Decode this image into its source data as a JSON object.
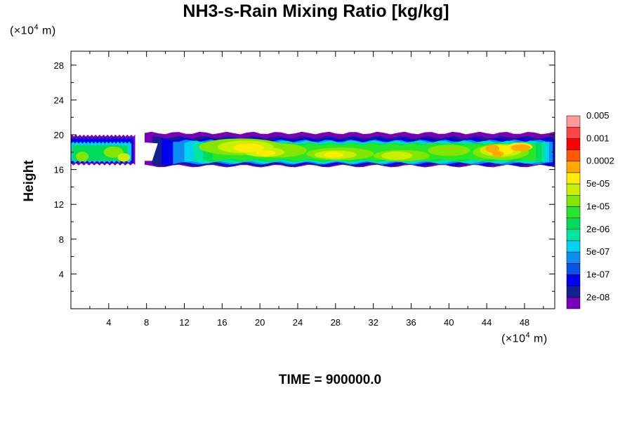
{
  "chart_data": {
    "type": "heatmap",
    "title": "NH3-s-Rain Mixing Ratio [kg/kg]",
    "ylabel": "Height",
    "xlabel": "",
    "x_unit_prefix": "(×10",
    "x_unit_exp": "4",
    "x_unit_suffix": " m)",
    "y_unit_prefix": "(×10",
    "y_unit_exp": "4",
    "y_unit_suffix": " m)",
    "xlim": [
      0,
      51.2
    ],
    "ylim": [
      0,
      29.6
    ],
    "x_ticks": [
      "4",
      "8",
      "12",
      "16",
      "20",
      "24",
      "28",
      "32",
      "36",
      "40",
      "44",
      "48"
    ],
    "x_tick_values": [
      4,
      8,
      12,
      16,
      20,
      24,
      28,
      32,
      36,
      40,
      44,
      48
    ],
    "y_ticks": [
      "4",
      "8",
      "12",
      "16",
      "20",
      "24",
      "28"
    ],
    "y_tick_values": [
      4,
      8,
      12,
      16,
      20,
      24,
      28
    ],
    "colorbar": {
      "colors": [
        "#7a00b8",
        "#13208f",
        "#0000f0",
        "#0a52e6",
        "#0a8cf0",
        "#00d2f0",
        "#00e6a0",
        "#00dc5a",
        "#28e628",
        "#82e600",
        "#c8f000",
        "#ffec00",
        "#ffaa00",
        "#ff5a00",
        "#ff0000",
        "#ff4646",
        "#ff9a9a"
      ],
      "labels": [
        "2e-08",
        "1e-07",
        "5e-07",
        "2e-06",
        "1e-05",
        "5e-05",
        "0.0002",
        "0.001",
        "0.005"
      ]
    },
    "field_layers": [
      {
        "level": 0,
        "color": "#7a00b8",
        "bottom": [
          [
            0,
            19.4
          ],
          [
            3,
            19.5
          ],
          [
            6,
            19.6
          ],
          [
            6.4,
            19.4
          ],
          [
            7.2,
            19.4
          ],
          [
            8,
            19.0
          ],
          [
            9,
            19.2
          ],
          [
            12,
            19.6
          ],
          [
            20,
            19.8
          ],
          [
            30,
            19.8
          ],
          [
            40,
            20.0
          ],
          [
            46,
            19.8
          ],
          [
            51.2,
            19.9
          ]
        ]
      },
      {
        "level": 1,
        "color": "#13208f"
      },
      {
        "level": 2,
        "color": "#0000f0"
      },
      {
        "level": 3,
        "color": "#0a52e6"
      },
      {
        "level": 4,
        "color": "#0a8cf0"
      },
      {
        "level": 5,
        "color": "#00d2f0"
      },
      {
        "level": 6,
        "color": "#00e6a0"
      },
      {
        "level": 7,
        "color": "#00dc5a"
      },
      {
        "level": 8,
        "color": "#28e628"
      },
      {
        "level": 9,
        "color": "#82e600"
      },
      {
        "level": 10,
        "color": "#c8f000"
      },
      {
        "level": 11,
        "color": "#ffec00"
      },
      {
        "level": 12,
        "color": "#ffaa00"
      },
      {
        "level": 13,
        "color": "#ff5a00"
      }
    ],
    "band": {
      "top": 20.0,
      "bottom": 16.4
    }
  },
  "time_label": "TIME = 900000.0"
}
